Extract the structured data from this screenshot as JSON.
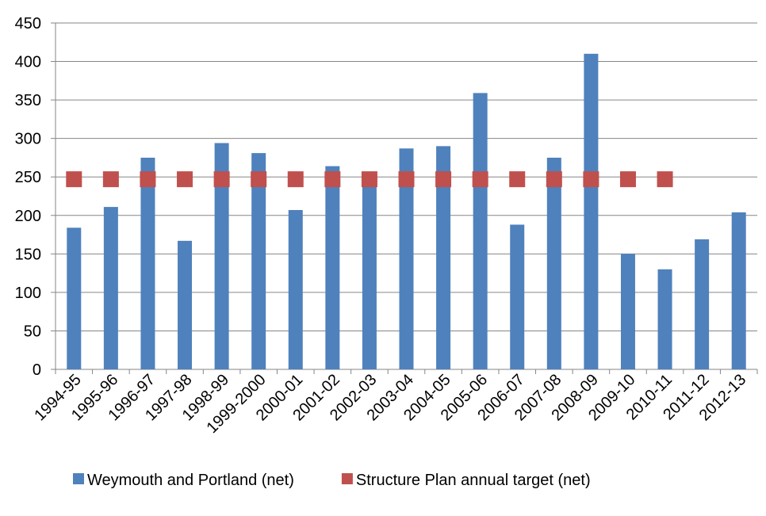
{
  "chart_data": {
    "type": "bar",
    "categories": [
      "1994-95",
      "1995-96",
      "1996-97",
      "1997-98",
      "1998-99",
      "1999-2000",
      "2000-01",
      "2001-02",
      "2002-03",
      "2003-04",
      "2004-05",
      "2005-06",
      "2006-07",
      "2007-08",
      "2008-09",
      "2009-10",
      "2010-11",
      "2011-12",
      "2012-13"
    ],
    "series": [
      {
        "name": "Weymouth and Portland (net)",
        "color": "#4f81bd",
        "values": [
          184,
          211,
          275,
          167,
          294,
          281,
          207,
          264,
          248,
          287,
          290,
          359,
          188,
          275,
          410,
          150,
          130,
          169,
          204
        ]
      },
      {
        "name": "Structure Plan annual target (net)",
        "color": "#c0504d",
        "marker": "square",
        "values": [
          247,
          247,
          247,
          247,
          247,
          247,
          247,
          247,
          247,
          247,
          247,
          247,
          247,
          247,
          247,
          247,
          247,
          null,
          null
        ]
      }
    ],
    "ylim": [
      0,
      450
    ],
    "yticks": [
      0,
      50,
      100,
      150,
      200,
      250,
      300,
      350,
      400,
      450
    ],
    "grid": true,
    "legend": "bottom"
  }
}
